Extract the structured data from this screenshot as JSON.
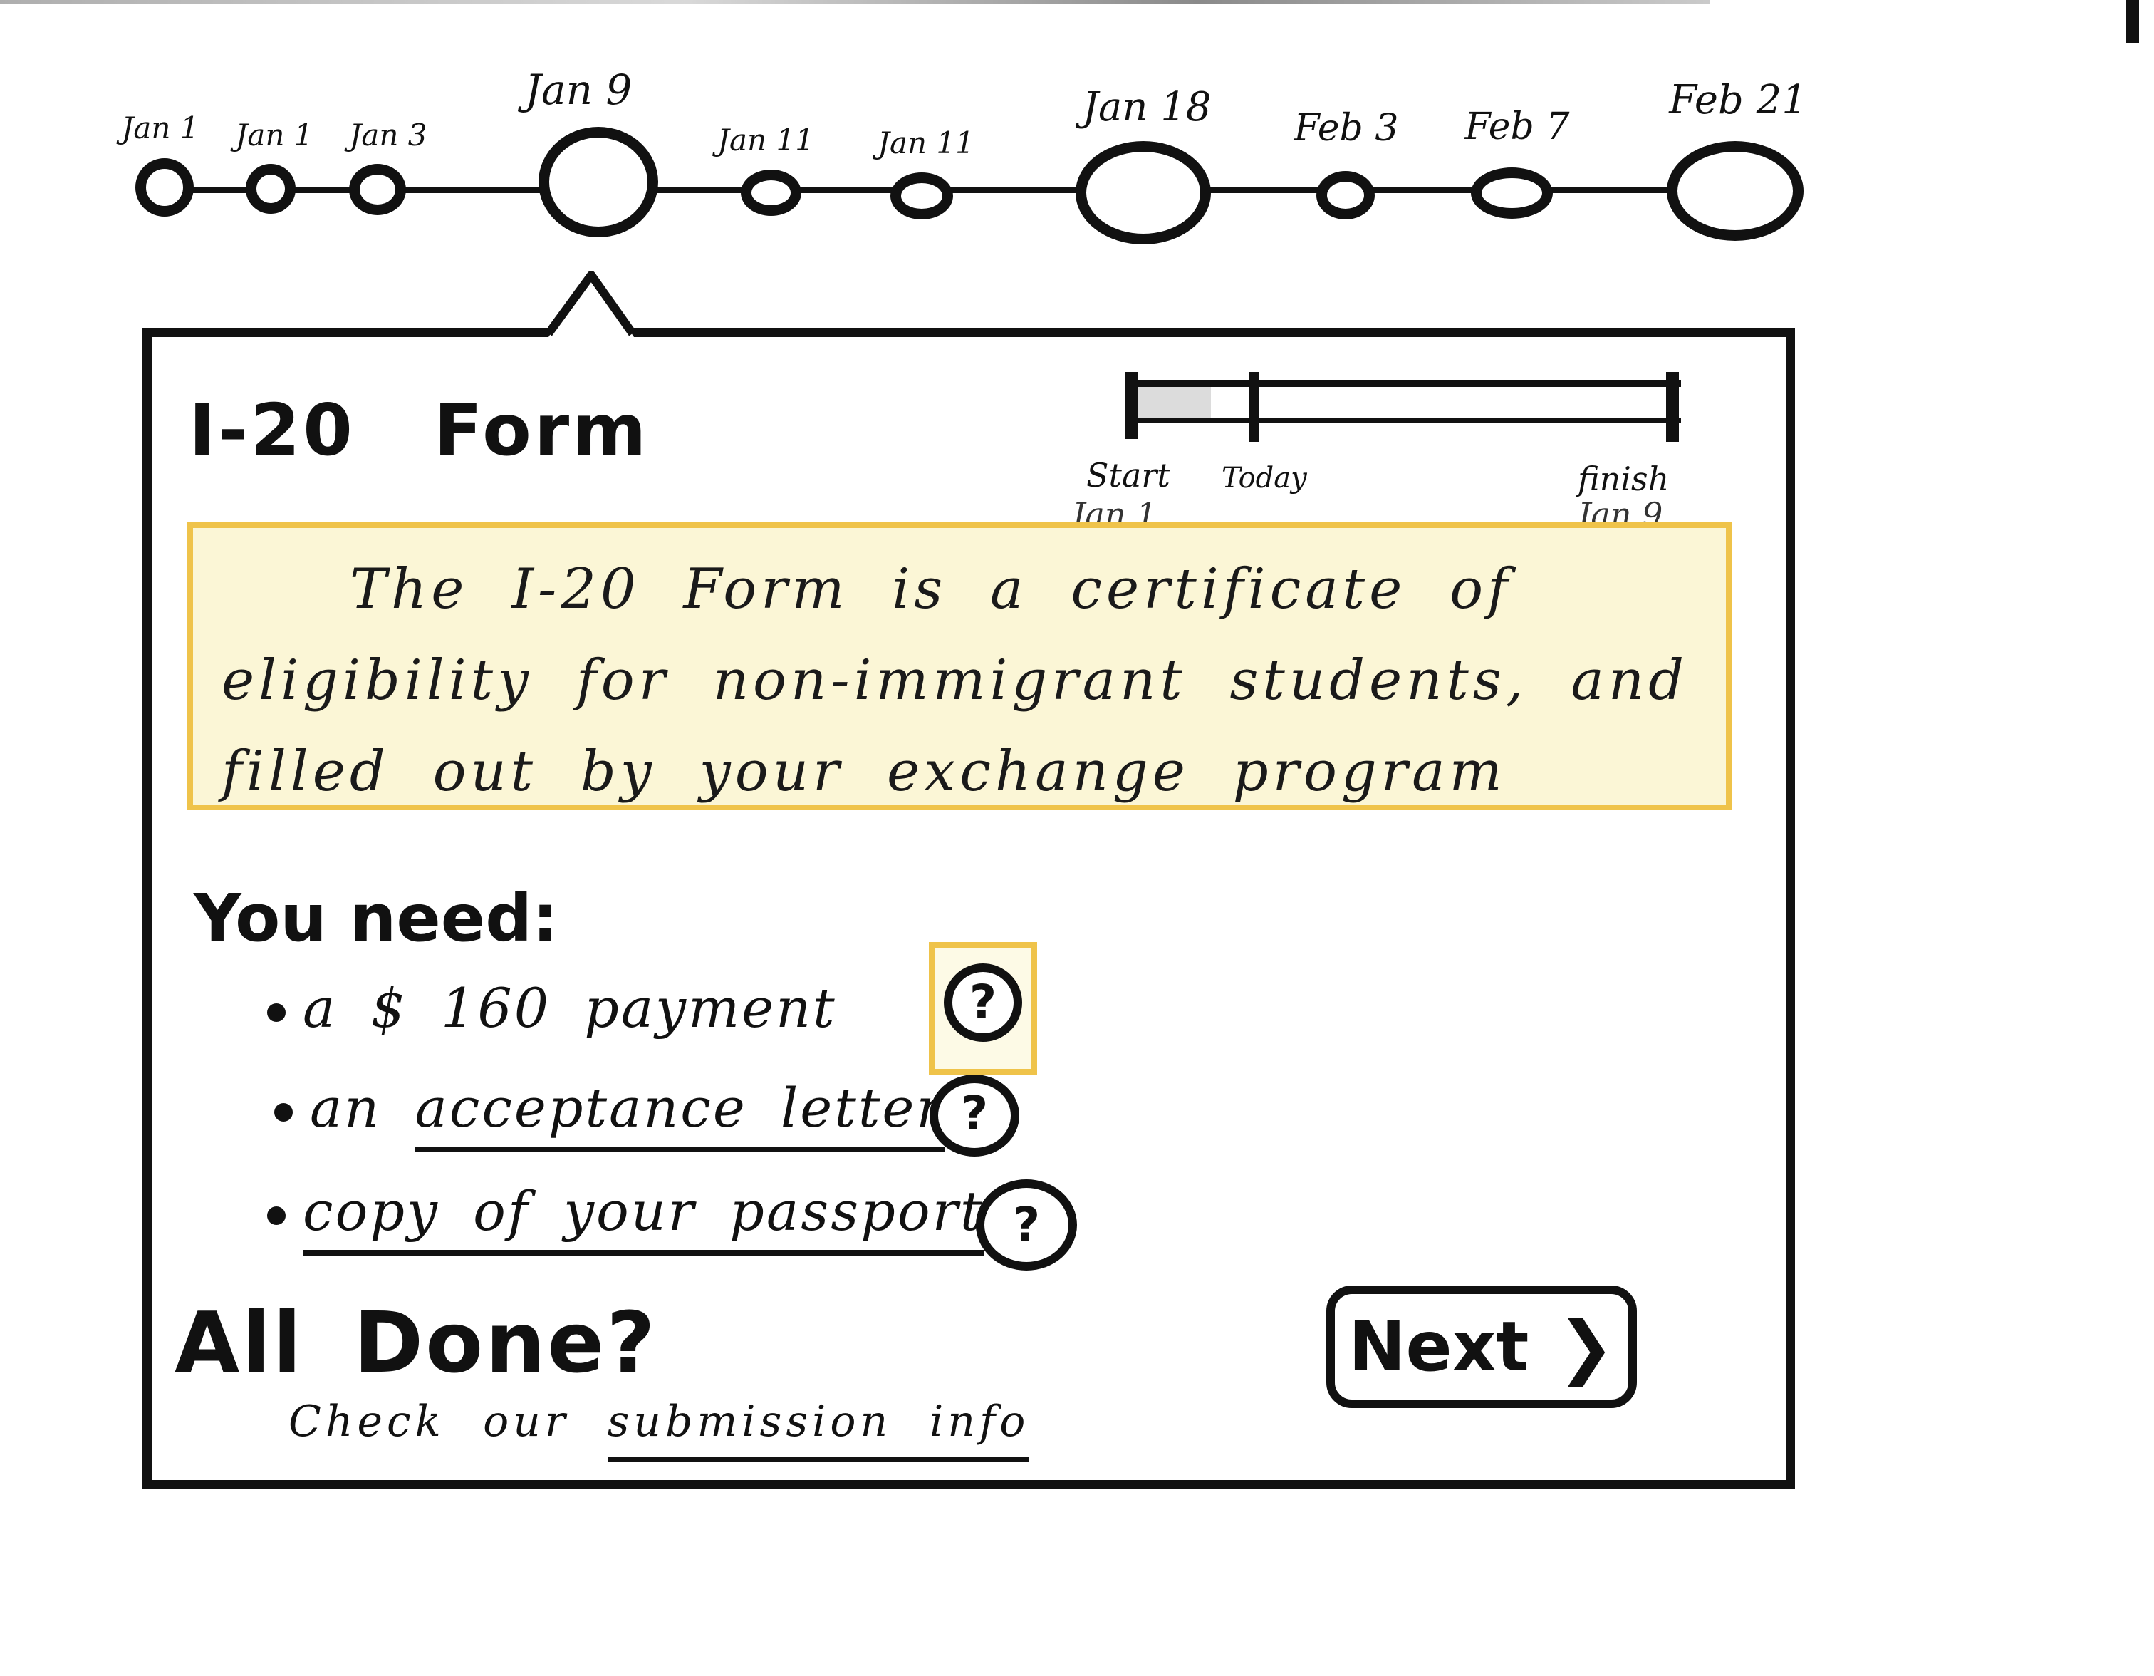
{
  "timeline": {
    "nodes": [
      {
        "label": "Jan 1",
        "size": "small"
      },
      {
        "label": "Jan 1",
        "size": "small"
      },
      {
        "label": "Jan 3",
        "size": "small"
      },
      {
        "label": "Jan 9",
        "size": "large",
        "selected": true
      },
      {
        "label": "Jan 11",
        "size": "small"
      },
      {
        "label": "Jan 11",
        "size": "small"
      },
      {
        "label": "Jan 18",
        "size": "large"
      },
      {
        "label": "Feb 3",
        "size": "small"
      },
      {
        "label": "Feb 7",
        "size": "small"
      },
      {
        "label": "Feb 21",
        "size": "large"
      }
    ]
  },
  "card": {
    "title_part1": "I-20",
    "title_part2": "Form",
    "progress": {
      "start_label": "Start",
      "start_date": "Jan 1",
      "today_label": "Today",
      "finish_label": "finish",
      "finish_date": "Jan 9",
      "today_fraction": 0.12
    },
    "description": "The I-20 Form is a certificate of eligibility for non-immigrant students, and filled out by your exchange program",
    "needs_title": "You need:",
    "requirements": [
      {
        "prefix": "a",
        "text": "$ 160 payment",
        "is_link": false
      },
      {
        "prefix": "an",
        "text": "acceptance letter",
        "is_link": true
      },
      {
        "prefix": "",
        "text": "copy of your passport",
        "is_link": true
      }
    ],
    "help_glyph": "?",
    "done_title_part1": "All",
    "done_title_part2": "Done?",
    "check_text": "Check our",
    "submission_link": "submission info",
    "next_label": "Next",
    "next_glyph": "❯"
  },
  "colors": {
    "highlight_border": "#efc34a",
    "highlight_fill": "#fbf6d6",
    "ink": "#111111"
  }
}
